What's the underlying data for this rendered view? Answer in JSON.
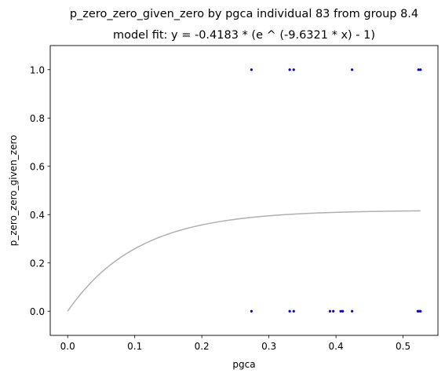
{
  "chart_data": {
    "type": "scatter",
    "title": "p_zero_zero_given_zero by pgca individual 83 from group 8.4",
    "subtitle": "model fit: y = -0.4183 * (e ^ (-9.6321 * x) - 1)",
    "xlabel": "pgca",
    "ylabel": "p_zero_zero_given_zero",
    "xlim": [
      -0.026,
      0.552
    ],
    "ylim": [
      -0.1,
      1.1
    ],
    "x_ticks": [
      0.0,
      0.1,
      0.2,
      0.3,
      0.4,
      0.5
    ],
    "x_tick_labels": [
      "0.0",
      "0.1",
      "0.2",
      "0.3",
      "0.4",
      "0.5"
    ],
    "y_ticks": [
      0.0,
      0.2,
      0.4,
      0.6,
      0.8,
      1.0
    ],
    "y_tick_labels": [
      "0.0",
      "0.2",
      "0.4",
      "0.6",
      "0.8",
      "1.0"
    ],
    "grid": false,
    "points": {
      "color": "#0000ff",
      "x": [
        0.274,
        0.331,
        0.337,
        0.424,
        0.523,
        0.526,
        0.274,
        0.331,
        0.337,
        0.391,
        0.396,
        0.407,
        0.41,
        0.424,
        0.522,
        0.524,
        0.526
      ],
      "y": [
        1,
        1,
        1,
        1,
        1,
        1,
        0,
        0,
        0,
        0,
        0,
        0,
        0,
        0,
        0,
        0,
        0
      ]
    },
    "fit": {
      "color": "#b0b0b0",
      "a": 0.4183,
      "b": -9.6321,
      "x_range": [
        0.0,
        0.526
      ]
    }
  }
}
